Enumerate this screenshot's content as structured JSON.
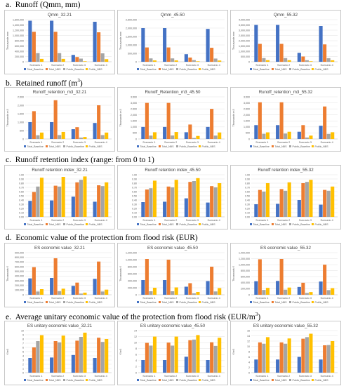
{
  "series_names": [
    "Total_Baseline",
    "Total_NBS",
    "Public_Baseline",
    "Public_NBS"
  ],
  "colors": [
    "#4472C4",
    "#ED7D31",
    "#A5A5A5",
    "#FFC000"
  ],
  "categories": [
    "Scenario 1",
    "Scenario 2",
    "Scenario 3",
    "Scenario 4"
  ],
  "sections": [
    {
      "letter": "a.",
      "text": "Runoff (Qmm, mm)",
      "sup": ""
    },
    {
      "letter": "b.",
      "text": "Retained runoff (m",
      "sup": "3",
      "after": ")"
    },
    {
      "letter": "c.",
      "text": "Runoff retention index (range: from 0 to 1)",
      "sup": ""
    },
    {
      "letter": "d.",
      "text": "Economic value of the protection from flood risk (EUR)",
      "sup": ""
    },
    {
      "letter": "e.",
      "text": "Average unitary economic value of the protection from flood risk (EUR/m",
      "sup": "3",
      "after": ")"
    }
  ],
  "chart_data": [
    {
      "type": "bar",
      "title": "Qmm_32.21",
      "ylabel": "Thousands mm",
      "ylim": [
        0,
        1600000
      ],
      "yticks": [
        0,
        200000,
        400000,
        600000,
        800000,
        1000000,
        1200000,
        1400000,
        1600000
      ],
      "ytick_labels": [
        "0",
        "200,000",
        "400,000",
        "600,000",
        "800,000",
        "1,000,000",
        "1,200,000",
        "1,400,000",
        "1,600,000"
      ],
      "categories": [
        "Scenario 1",
        "Scenario 2",
        "Scenario 3",
        "Scenario 4"
      ],
      "series": [
        {
          "name": "Total_Baseline",
          "values": [
            1560000,
            1560000,
            260000,
            1520000
          ]
        },
        {
          "name": "Total_NBS",
          "values": [
            1140000,
            1140000,
            180000,
            1120000
          ]
        },
        {
          "name": "Public_Baseline",
          "values": [
            330000,
            330000,
            120000,
            320000
          ]
        },
        {
          "name": "Public_NBS",
          "values": [
            110000,
            110000,
            20000,
            100000
          ]
        }
      ]
    },
    {
      "type": "bar",
      "title": "Qmm_45.50",
      "ylabel": "Thousands mm",
      "ylim": [
        0,
        2500000
      ],
      "yticks": [
        0,
        500000,
        1000000,
        1500000,
        2000000,
        2500000
      ],
      "ytick_labels": [
        "0",
        "500,000",
        "1,000,000",
        "1,500,000",
        "2,000,000",
        "2,500,000"
      ],
      "categories": [
        "Scenario 1",
        "Scenario 2",
        "Scenario 3",
        "Scenario 4"
      ],
      "series": [
        {
          "name": "Total_Baseline",
          "values": [
            2000000,
            2000000,
            450000,
            1950000
          ]
        },
        {
          "name": "Total_NBS",
          "values": [
            850000,
            850000,
            250000,
            830000
          ]
        },
        {
          "name": "Public_Baseline",
          "values": [
            200000,
            200000,
            100000,
            190000
          ]
        },
        {
          "name": "Public_NBS",
          "values": [
            80000,
            80000,
            30000,
            75000
          ]
        }
      ]
    },
    {
      "type": "bar",
      "title": "Qmm_55.32",
      "ylabel": "Thousands mm",
      "ylim": [
        0,
        4000000
      ],
      "yticks": [
        0,
        500000,
        1000000,
        1500000,
        2000000,
        2500000,
        3000000,
        3500000,
        4000000
      ],
      "ytick_labels": [
        "0",
        "500,000",
        "1,000,000",
        "1,500,000",
        "2,000,000",
        "2,500,000",
        "3,000,000",
        "3,500,000",
        "4,000,000"
      ],
      "categories": [
        "Scenario 1",
        "Scenario 2",
        "Scenario 3",
        "Scenario 4"
      ],
      "series": [
        {
          "name": "Total_Baseline",
          "values": [
            3500000,
            3500000,
            850000,
            3400000
          ]
        },
        {
          "name": "Total_NBS",
          "values": [
            1700000,
            1700000,
            500000,
            1650000
          ]
        },
        {
          "name": "Public_Baseline",
          "values": [
            350000,
            350000,
            150000,
            340000
          ]
        },
        {
          "name": "Public_NBS",
          "values": [
            150000,
            150000,
            50000,
            140000
          ]
        }
      ]
    },
    {
      "type": "bar",
      "title": "Runoff_retention_m3_32.21",
      "ylabel": "Thousands m3",
      "ylim": [
        0,
        2500
      ],
      "yticks": [
        0,
        500,
        1000,
        1500,
        2000,
        2500
      ],
      "ytick_labels": [
        "0",
        "500",
        "1,000",
        "1,500",
        "2,000",
        "2,500"
      ],
      "categories": [
        "Scenario 1",
        "Scenario 2",
        "Scenario 3",
        "Scenario 4"
      ],
      "series": [
        {
          "name": "Total_Baseline",
          "values": [
            1000,
            1000,
            580,
            950
          ]
        },
        {
          "name": "Total_NBS",
          "values": [
            1650,
            2300,
            700,
            2000
          ]
        },
        {
          "name": "Public_Baseline",
          "values": [
            220,
            230,
            80,
            230
          ]
        },
        {
          "name": "Public_NBS",
          "values": [
            380,
            420,
            120,
            380
          ]
        }
      ]
    },
    {
      "type": "bar",
      "title": "Runoff_Retention_m3_45.50",
      "ylabel": "Thousands m3",
      "ylim": [
        0,
        3500
      ],
      "yticks": [
        0,
        500,
        1000,
        1500,
        2000,
        2500,
        3000,
        3500
      ],
      "ytick_labels": [
        "0",
        "500",
        "1,000",
        "1,500",
        "2,000",
        "2,500",
        "3,000",
        "3,500"
      ],
      "categories": [
        "Scenario 1",
        "Scenario 2",
        "Scenario 3",
        "Scenario 4"
      ],
      "series": [
        {
          "name": "Total_Baseline",
          "values": [
            1000,
            1000,
            560,
            1000
          ]
        },
        {
          "name": "Total_NBS",
          "values": [
            3000,
            3000,
            1200,
            2500
          ]
        },
        {
          "name": "Public_Baseline",
          "values": [
            280,
            290,
            80,
            280
          ]
        },
        {
          "name": "Public_NBS",
          "values": [
            560,
            580,
            250,
            540
          ]
        }
      ]
    },
    {
      "type": "bar",
      "title": "Runoff_retention_m3_55.32",
      "ylabel": "Thousands m3",
      "ylim": [
        0,
        3500
      ],
      "yticks": [
        0,
        500,
        1000,
        1500,
        2000,
        2500,
        3000,
        3500
      ],
      "ytick_labels": [
        "0",
        "500",
        "1,000",
        "1,500",
        "2,000",
        "2,500",
        "3,000",
        "3,500"
      ],
      "categories": [
        "Scenario 1",
        "Scenario 2",
        "Scenario 3",
        "Scenario 4"
      ],
      "series": [
        {
          "name": "Total_Baseline",
          "values": [
            1150,
            1150,
            600,
            1100
          ]
        },
        {
          "name": "Total_NBS",
          "values": [
            3050,
            3050,
            1150,
            2700
          ]
        },
        {
          "name": "Public_Baseline",
          "values": [
            430,
            450,
            120,
            420
          ]
        },
        {
          "name": "Public_NBS",
          "values": [
            550,
            600,
            280,
            560
          ]
        }
      ]
    },
    {
      "type": "bar",
      "title": "Runoff retention index_32.21",
      "ylabel": "",
      "ylim": [
        0,
        1
      ],
      "yticks": [
        0,
        0.1,
        0.2,
        0.3,
        0.4,
        0.5,
        0.6,
        0.7,
        0.8,
        0.9,
        1
      ],
      "ytick_labels": [
        "0.00",
        "0.10",
        "0.20",
        "0.30",
        "0.40",
        "0.50",
        "0.60",
        "0.70",
        "0.80",
        "0.90",
        "1.00"
      ],
      "categories": [
        "Scenario 1",
        "Scenario 2",
        "Scenario 3",
        "Scenario 4"
      ],
      "series": [
        {
          "name": "Total_Baseline",
          "values": [
            0.38,
            0.39,
            0.48,
            0.36
          ]
        },
        {
          "name": "Total_NBS",
          "values": [
            0.59,
            0.74,
            0.82,
            0.75
          ]
        },
        {
          "name": "Public_Baseline",
          "values": [
            0.72,
            0.72,
            0.88,
            0.73
          ]
        },
        {
          "name": "Public_NBS",
          "values": [
            0.93,
            0.95,
            0.96,
            0.82
          ]
        }
      ]
    },
    {
      "type": "bar",
      "title": "Runoff retention index_45.50",
      "ylabel": "",
      "ylim": [
        0,
        1
      ],
      "yticks": [
        0,
        0.1,
        0.2,
        0.3,
        0.4,
        0.5,
        0.6,
        0.7,
        0.8,
        0.9,
        1
      ],
      "ytick_labels": [
        "0.00",
        "0.10",
        "0.20",
        "0.30",
        "0.40",
        "0.50",
        "0.60",
        "0.70",
        "0.80",
        "0.90",
        "1.00"
      ],
      "categories": [
        "Scenario 1",
        "Scenario 2",
        "Scenario 3",
        "Scenario 4"
      ],
      "series": [
        {
          "name": "Total_Baseline",
          "values": [
            0.35,
            0.36,
            0.44,
            0.34
          ]
        },
        {
          "name": "Total_NBS",
          "values": [
            0.65,
            0.72,
            0.83,
            0.73
          ]
        },
        {
          "name": "Public_Baseline",
          "values": [
            0.68,
            0.7,
            0.85,
            0.7
          ]
        },
        {
          "name": "Public_NBS",
          "values": [
            0.86,
            0.88,
            0.92,
            0.8
          ]
        }
      ]
    },
    {
      "type": "bar",
      "title": "Runoff retention index_55.32",
      "ylabel": "",
      "ylim": [
        0,
        1
      ],
      "yticks": [
        0,
        0.1,
        0.2,
        0.3,
        0.4,
        0.5,
        0.6,
        0.7,
        0.8,
        0.9,
        1
      ],
      "ytick_labels": [
        "0.00",
        "0.10",
        "0.20",
        "0.30",
        "0.40",
        "0.50",
        "0.60",
        "0.70",
        "0.80",
        "0.90",
        "1.00"
      ],
      "categories": [
        "Scenario 1",
        "Scenario 2",
        "Scenario 3",
        "Scenario 4"
      ],
      "series": [
        {
          "name": "Total_Baseline",
          "values": [
            0.3,
            0.31,
            0.4,
            0.29
          ]
        },
        {
          "name": "Total_NBS",
          "values": [
            0.64,
            0.66,
            0.8,
            0.64
          ]
        },
        {
          "name": "Public_Baseline",
          "values": [
            0.6,
            0.62,
            0.83,
            0.62
          ]
        },
        {
          "name": "Public_NBS",
          "values": [
            0.8,
            0.82,
            0.88,
            0.72
          ]
        }
      ]
    },
    {
      "type": "bar",
      "title": "ES economic value_32.21",
      "ylabel": "Thousands €",
      "ylim": [
        0,
        900000
      ],
      "yticks": [
        0,
        100000,
        200000,
        300000,
        400000,
        500000,
        600000,
        700000,
        800000,
        900000
      ],
      "ytick_labels": [
        "0",
        "100,000",
        "200,000",
        "300,000",
        "400,000",
        "500,000",
        "600,000",
        "700,000",
        "800,000",
        "900,000"
      ],
      "categories": [
        "Scenario 1",
        "Scenario 2",
        "Scenario 3",
        "Scenario 4"
      ],
      "series": [
        {
          "name": "Total_Baseline",
          "values": [
            350000,
            360000,
            190000,
            340000
          ]
        },
        {
          "name": "Total_NBS",
          "values": [
            590000,
            780000,
            260000,
            710000
          ]
        },
        {
          "name": "Public_Baseline",
          "values": [
            70000,
            75000,
            25000,
            70000
          ]
        },
        {
          "name": "Public_NBS",
          "values": [
            120000,
            130000,
            45000,
            110000
          ]
        }
      ]
    },
    {
      "type": "bar",
      "title": "ES economic value_45.50",
      "ylabel": "Thousands €",
      "ylim": [
        0,
        1200000
      ],
      "yticks": [
        0,
        200000,
        400000,
        600000,
        800000,
        1000000,
        1200000
      ],
      "ytick_labels": [
        "0",
        "200,000",
        "400,000",
        "600,000",
        "800,000",
        "1,000,000",
        "1,200,000"
      ],
      "categories": [
        "Scenario 1",
        "Scenario 2",
        "Scenario 3",
        "Scenario 4"
      ],
      "series": [
        {
          "name": "Total_Baseline",
          "values": [
            420000,
            420000,
            230000,
            390000
          ]
        },
        {
          "name": "Total_NBS",
          "values": [
            1020000,
            1000000,
            330000,
            800000
          ]
        },
        {
          "name": "Public_Baseline",
          "values": [
            100000,
            100000,
            40000,
            95000
          ]
        },
        {
          "name": "Public_NBS",
          "values": [
            200000,
            210000,
            80000,
            190000
          ]
        }
      ]
    },
    {
      "type": "bar",
      "title": "ES economic value_55.32",
      "ylabel": "Thousands €",
      "ylim": [
        0,
        1400000
      ],
      "yticks": [
        0,
        200000,
        400000,
        600000,
        800000,
        1000000,
        1200000,
        1400000
      ],
      "ytick_labels": [
        "0",
        "200,000",
        "400,000",
        "600,000",
        "800,000",
        "1,000,000",
        "1,200,000",
        "1,400,000"
      ],
      "categories": [
        "Scenario 1",
        "Scenario 2",
        "Scenario 3",
        "Scenario 4"
      ],
      "series": [
        {
          "name": "Total_Baseline",
          "values": [
            450000,
            460000,
            260000,
            440000
          ]
        },
        {
          "name": "Total_NBS",
          "values": [
            1180000,
            1190000,
            400000,
            1000000
          ]
        },
        {
          "name": "Public_Baseline",
          "values": [
            160000,
            170000,
            60000,
            155000
          ]
        },
        {
          "name": "Public_NBS",
          "values": [
            230000,
            240000,
            90000,
            220000
          ]
        }
      ]
    },
    {
      "type": "bar",
      "title": "ES unitary economic value_32.21",
      "ylabel": "€/m3",
      "ylim": [
        0,
        10
      ],
      "yticks": [
        0,
        1,
        2,
        3,
        4,
        5,
        6,
        7,
        8,
        9,
        10
      ],
      "ytick_labels": [
        "0",
        "1",
        "2",
        "3",
        "4",
        "5",
        "6",
        "7",
        "8",
        "9",
        "10"
      ],
      "categories": [
        "Scenario 1",
        "Scenario 2",
        "Scenario 3",
        "Scenario 4"
      ],
      "series": [
        {
          "name": "Total_Baseline",
          "values": [
            3.5,
            3.6,
            4.2,
            3.5
          ]
        },
        {
          "name": "Total_NBS",
          "values": [
            6.0,
            7.5,
            7.6,
            8.3
          ]
        },
        {
          "name": "Public_Baseline",
          "values": [
            7.5,
            7.2,
            8.5,
            7.3
          ]
        },
        {
          "name": "Public_NBS",
          "values": [
            8.9,
            8.8,
            9.5,
            8.0
          ]
        }
      ]
    },
    {
      "type": "bar",
      "title": "ES unitary economic value_45.50",
      "ylabel": "€/m3",
      "ylim": [
        0,
        14
      ],
      "yticks": [
        0,
        2,
        4,
        6,
        8,
        10,
        12,
        14
      ],
      "ytick_labels": [
        "0",
        "2",
        "4",
        "6",
        "8",
        "10",
        "12",
        "14"
      ],
      "categories": [
        "Scenario 1",
        "Scenario 2",
        "Scenario 3",
        "Scenario 4"
      ],
      "series": [
        {
          "name": "Total_Baseline",
          "values": [
            4.2,
            4.2,
            5.3,
            4.2
          ]
        },
        {
          "name": "Total_NBS",
          "values": [
            9.9,
            10.0,
            10.8,
            10.1
          ]
        },
        {
          "name": "Public_Baseline",
          "values": [
            9.0,
            9.0,
            11.0,
            8.9
          ]
        },
        {
          "name": "Public_NBS",
          "values": [
            12.0,
            12.0,
            12.5,
            11.6
          ]
        }
      ]
    },
    {
      "type": "bar",
      "title": "ES unitary economic value_55.32",
      "ylabel": "€/m3",
      "ylim": [
        0,
        16
      ],
      "yticks": [
        0,
        2,
        4,
        6,
        8,
        10,
        12,
        14,
        16
      ],
      "ytick_labels": [
        "0",
        "2",
        "4",
        "6",
        "8",
        "10",
        "12",
        "14",
        "16"
      ],
      "categories": [
        "Scenario 1",
        "Scenario 2",
        "Scenario 3",
        "Scenario 4"
      ],
      "series": [
        {
          "name": "Total_Baseline",
          "values": [
            5.0,
            5.0,
            6.0,
            5.0
          ]
        },
        {
          "name": "Total_NBS",
          "values": [
            11.5,
            11.5,
            12.9,
            10.4
          ]
        },
        {
          "name": "Public_Baseline",
          "values": [
            11.0,
            11.0,
            13.5,
            10.5
          ]
        },
        {
          "name": "Public_NBS",
          "values": [
            13.5,
            13.0,
            14.8,
            12.0
          ]
        }
      ]
    }
  ]
}
